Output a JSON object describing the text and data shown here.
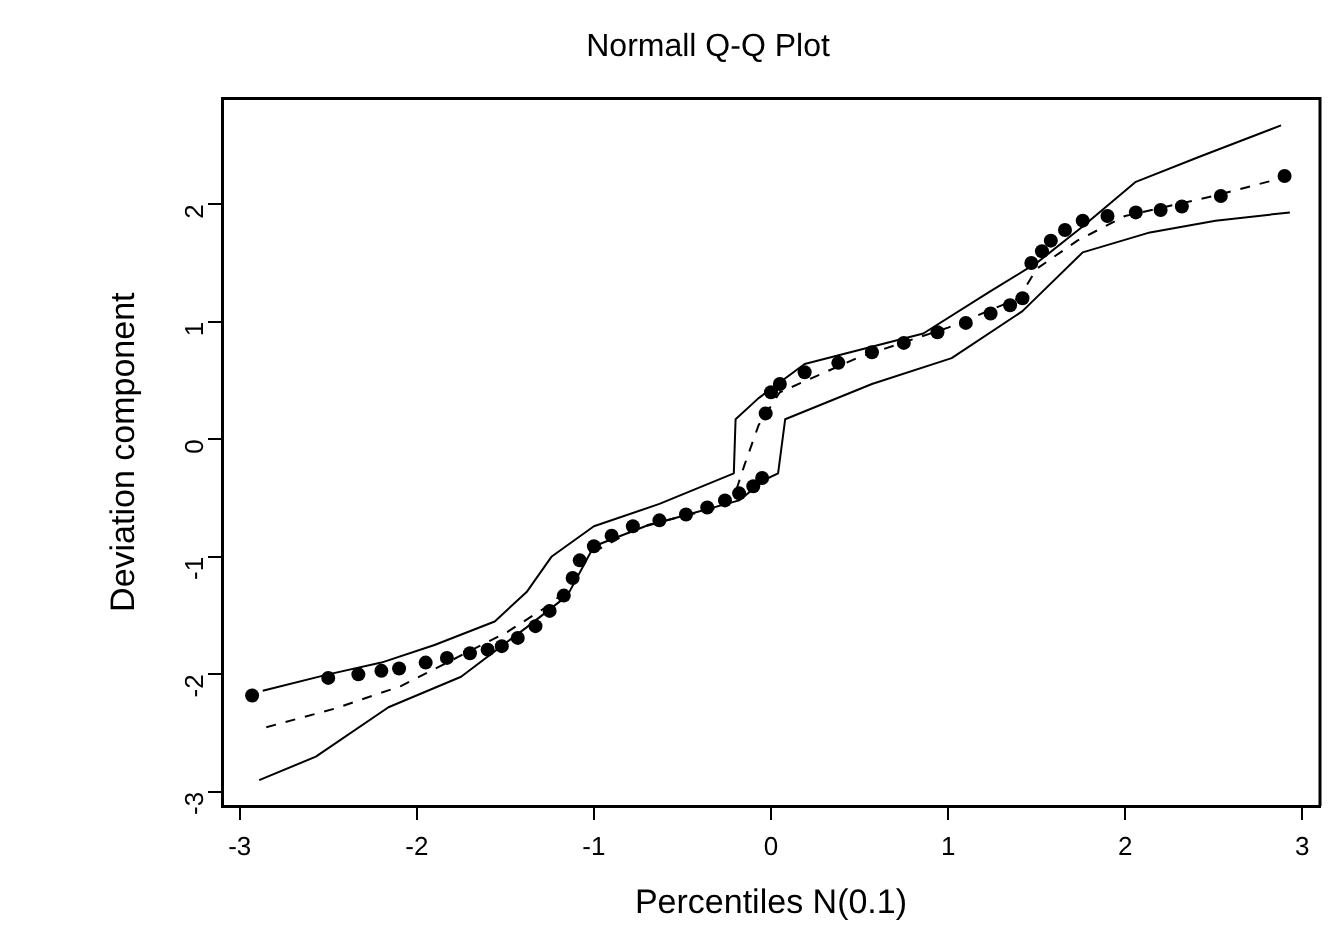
{
  "chart_data": {
    "type": "scatter",
    "title": "Normall Q-Q Plot",
    "xlabel": "Percentiles N(0.1)",
    "ylabel": "Deviation component",
    "xlim": [
      -3.1,
      3.1
    ],
    "ylim": [
      -3.12,
      2.9
    ],
    "xticks": [
      -3,
      -2,
      -1,
      0,
      1,
      2,
      3
    ],
    "yticks": [
      -3,
      -2,
      -1,
      0,
      1,
      2
    ],
    "grid": false,
    "legend": false,
    "series": [
      {
        "type": "line",
        "color": "#000000",
        "line_style": "solid",
        "marker": "none",
        "x": [
          -2.87,
          -2.5,
          -2.2,
          -1.9,
          -1.56,
          -1.38,
          -1.24,
          -1.0,
          -0.63,
          -0.21,
          -0.2,
          -0.07,
          0.19,
          0.86,
          1.24,
          1.5,
          1.76,
          2.06,
          2.43,
          2.88
        ],
        "values": [
          -2.14,
          -2.0,
          -1.9,
          -1.75,
          -1.55,
          -1.3,
          -1.0,
          -0.74,
          -0.55,
          -0.29,
          0.17,
          0.35,
          0.64,
          0.9,
          1.26,
          1.5,
          1.81,
          2.19,
          2.41,
          2.67
        ]
      },
      {
        "type": "line",
        "color": "#000000",
        "line_style": "solid",
        "marker": "none",
        "x": [
          -2.89,
          -2.57,
          -2.16,
          -1.75,
          -1.38,
          -1.15,
          -1.0,
          -0.71,
          -0.18,
          -0.03,
          0.04,
          0.08,
          0.57,
          1.02,
          1.42,
          1.76,
          2.14,
          2.51,
          2.93
        ],
        "values": [
          -2.9,
          -2.7,
          -2.28,
          -2.02,
          -1.6,
          -1.33,
          -0.91,
          -0.74,
          -0.52,
          -0.34,
          -0.29,
          0.17,
          0.47,
          0.69,
          1.09,
          1.59,
          1.76,
          1.86,
          1.93
        ]
      },
      {
        "type": "line",
        "color": "#000000",
        "line_style": "dashed",
        "marker": "none",
        "x": [
          -2.85,
          -2.46,
          -2.09,
          -1.49,
          -1.22,
          -1.05,
          -0.75,
          -0.3,
          -0.2,
          -0.15,
          -0.07,
          0.05,
          0.5,
          1.0,
          1.4,
          1.5,
          1.73,
          2.0,
          2.5,
          2.93
        ],
        "values": [
          -2.45,
          -2.29,
          -2.1,
          -1.64,
          -1.38,
          -1.0,
          -0.75,
          -0.58,
          -0.45,
          -0.22,
          0.12,
          0.4,
          0.7,
          0.95,
          1.2,
          1.45,
          1.69,
          1.9,
          2.07,
          2.24
        ]
      },
      {
        "type": "scatter",
        "color": "#000000",
        "marker": "circle",
        "x": [
          -2.93,
          -2.5,
          -2.33,
          -2.2,
          -2.1,
          -1.95,
          -1.83,
          -1.7,
          -1.6,
          -1.52,
          -1.43,
          -1.33,
          -1.25,
          -1.17,
          -1.12,
          -1.08,
          -1.0,
          -0.9,
          -0.78,
          -0.63,
          -0.48,
          -0.36,
          -0.26,
          -0.18,
          -0.1,
          -0.05,
          -0.03,
          0.0,
          0.05,
          0.19,
          0.38,
          0.57,
          0.75,
          0.94,
          1.1,
          1.24,
          1.35,
          1.42,
          1.47,
          1.53,
          1.58,
          1.66,
          1.76,
          1.9,
          2.06,
          2.2,
          2.32,
          2.54,
          2.9
        ],
        "values": [
          -2.18,
          -2.03,
          -2.0,
          -1.97,
          -1.95,
          -1.9,
          -1.86,
          -1.82,
          -1.79,
          -1.76,
          -1.69,
          -1.59,
          -1.46,
          -1.33,
          -1.18,
          -1.03,
          -0.91,
          -0.82,
          -0.74,
          -0.69,
          -0.64,
          -0.58,
          -0.52,
          -0.46,
          -0.4,
          -0.33,
          0.22,
          0.4,
          0.47,
          0.57,
          0.65,
          0.74,
          0.82,
          0.91,
          0.99,
          1.07,
          1.14,
          1.2,
          1.5,
          1.6,
          1.69,
          1.78,
          1.86,
          1.9,
          1.93,
          1.95,
          1.98,
          2.07,
          2.24
        ]
      }
    ]
  }
}
